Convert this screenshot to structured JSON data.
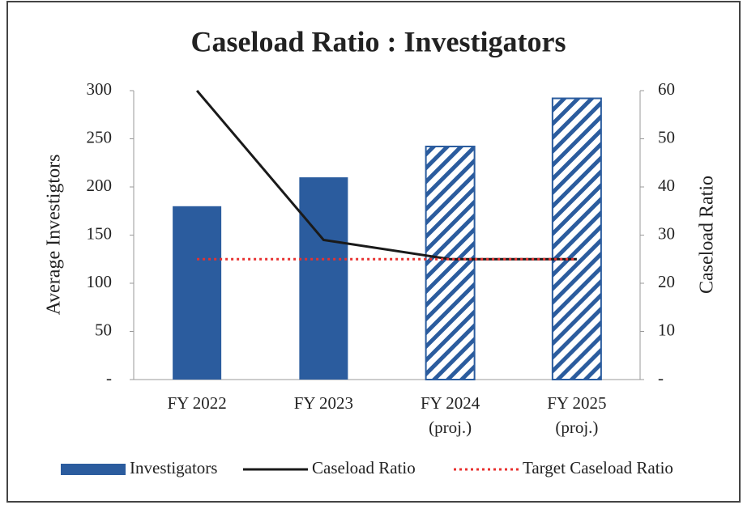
{
  "chart_data": {
    "type": "bar-line",
    "title": "Caseload Ratio : Investigators",
    "categories": [
      [
        "FY 2022"
      ],
      [
        "FY 2023"
      ],
      [
        "FY 2024",
        "(proj.)"
      ],
      [
        "FY 2025",
        "(proj.)"
      ]
    ],
    "ylabel": "Average Investigtors",
    "y2label": "Caseload Ratio",
    "ylim": [
      0,
      300
    ],
    "yticks": [
      {
        "value": 0,
        "label": "-"
      },
      50,
      100,
      150,
      200,
      250,
      300
    ],
    "y2lim": [
      0,
      60
    ],
    "y2ticks": [
      {
        "value": 0,
        "label": "-"
      },
      10,
      20,
      30,
      40,
      50,
      60
    ],
    "series": [
      {
        "name": "Investigators",
        "type": "bar",
        "color": "#2b5c9e",
        "hatched": [
          false,
          false,
          true,
          true
        ],
        "values": [
          180,
          210,
          242,
          292
        ]
      },
      {
        "name": "Caseload Ratio",
        "type": "line",
        "axis": "y2",
        "color": "#1a1a1a",
        "values": [
          60,
          29,
          25,
          25
        ]
      },
      {
        "name": "Target Caseload Ratio",
        "type": "line",
        "axis": "y2",
        "color": "#e8312f",
        "dotted": true,
        "values": [
          25,
          25,
          25,
          25
        ]
      }
    ]
  }
}
